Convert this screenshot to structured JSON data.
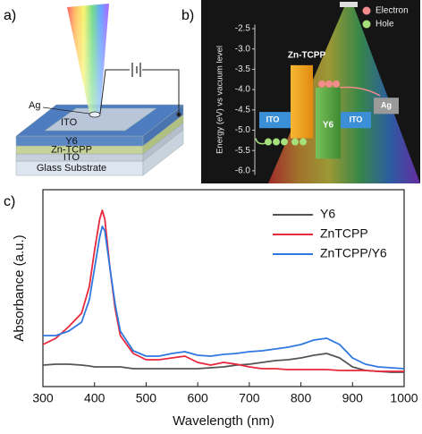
{
  "panel_labels": [
    "a)",
    "b)",
    "c)"
  ],
  "device": {
    "layers": [
      "Y6",
      "Zn-TCPP",
      "ITO",
      "Glass Substrate"
    ],
    "top_electrode": "ITO",
    "contact": "Ag"
  },
  "energy_diagram": {
    "ylabel": "Energy (eV) vs vacuum level",
    "ylim": [
      -2.4,
      -6.1
    ],
    "yticks": [
      -2.5,
      {
        "value": -3,
        "label": "-3.0"
      },
      -3.5,
      {
        "value": -4,
        "label": "-4.0"
      },
      -4.5,
      {
        "value": -5,
        "label": "-5.0"
      },
      -5.5,
      {
        "value": -6,
        "label": "-6.0"
      }
    ],
    "legend": [
      "Electron",
      "Hole"
    ],
    "materials": [
      "Zn-TCPP",
      "Y6"
    ],
    "electrodes": [
      "ITO",
      "ITO",
      "Ag"
    ]
  },
  "chart_data": {
    "type": "line",
    "xlabel": "Wavelength (nm)",
    "ylabel": "Absorbance (a.u.)",
    "xlim": [
      300,
      1000
    ],
    "xticks": [
      300,
      400,
      500,
      600,
      700,
      800,
      900,
      1000
    ],
    "ylim": [
      0,
      1.1
    ],
    "x": [
      300,
      325,
      350,
      375,
      390,
      400,
      410,
      415,
      420,
      430,
      440,
      450,
      475,
      500,
      525,
      550,
      575,
      600,
      625,
      650,
      675,
      700,
      725,
      750,
      775,
      800,
      825,
      850,
      875,
      900,
      925,
      950,
      975,
      1000
    ],
    "series": [
      {
        "name": "Y6",
        "color": "#555555",
        "values": [
          0.12,
          0.125,
          0.125,
          0.12,
          0.115,
          0.11,
          0.11,
          0.11,
          0.11,
          0.11,
          0.11,
          0.11,
          0.1,
          0.1,
          0.1,
          0.1,
          0.1,
          0.1,
          0.105,
          0.11,
          0.12,
          0.125,
          0.135,
          0.145,
          0.15,
          0.16,
          0.175,
          0.185,
          0.16,
          0.11,
          0.09,
          0.085,
          0.08,
          0.08
        ]
      },
      {
        "name": "ZnTCPP",
        "color": "#e8283c",
        "values": [
          0.235,
          0.27,
          0.335,
          0.41,
          0.56,
          0.76,
          0.935,
          0.985,
          0.935,
          0.66,
          0.435,
          0.285,
          0.185,
          0.15,
          0.15,
          0.16,
          0.17,
          0.135,
          0.12,
          0.135,
          0.125,
          0.11,
          0.1,
          0.1,
          0.095,
          0.095,
          0.095,
          0.095,
          0.09,
          0.09,
          0.09,
          0.085,
          0.085,
          0.085
        ]
      },
      {
        "name": "ZnTCPP/Y6",
        "color": "#2f78e0",
        "values": [
          0.285,
          0.285,
          0.31,
          0.36,
          0.485,
          0.66,
          0.835,
          0.895,
          0.87,
          0.66,
          0.46,
          0.31,
          0.2,
          0.17,
          0.17,
          0.185,
          0.195,
          0.175,
          0.17,
          0.18,
          0.185,
          0.195,
          0.2,
          0.21,
          0.22,
          0.235,
          0.26,
          0.27,
          0.235,
          0.16,
          0.125,
          0.11,
          0.105,
          0.1
        ]
      }
    ]
  }
}
